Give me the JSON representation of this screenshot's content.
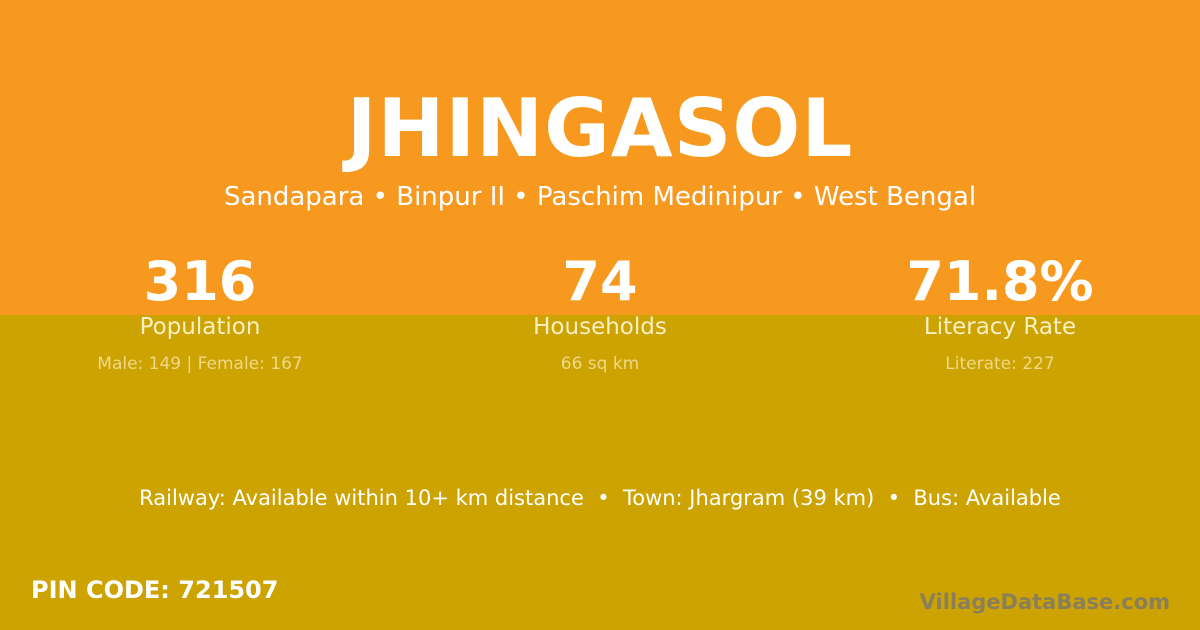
{
  "village": "JHINGASOL",
  "location": "Sandapara • Binpur II • Paschim Medinipur • West Bengal",
  "stats": [
    {
      "value": "316",
      "label": "Population",
      "detail": "Male: 149 | Female: 167"
    },
    {
      "value": "74",
      "label": "Households",
      "detail": "66 sq km"
    },
    {
      "value": "71.8%",
      "label": "Literacy Rate",
      "detail": "Literate: 227"
    }
  ],
  "connectivity": "Railway: Available within 10+ km distance  •  Town: Jhargram (39 km)  •  Bus: Available",
  "pin_code": "PIN CODE: 721507",
  "brand": "VillageDataBase.com",
  "colors": {
    "top_background": "#F7991F",
    "bottom_background": "#CCA300"
  }
}
